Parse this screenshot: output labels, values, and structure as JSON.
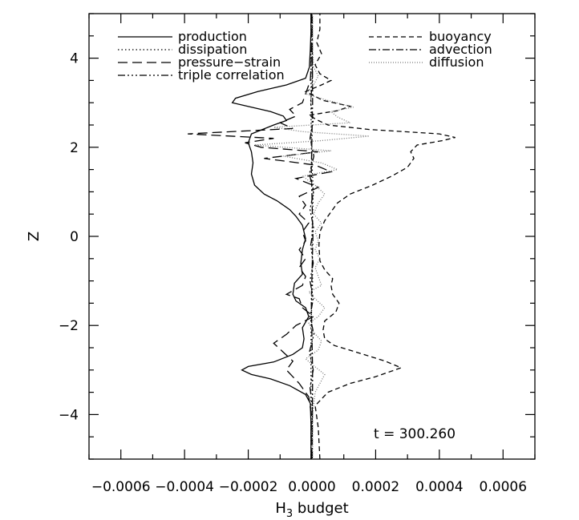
{
  "chart_data": {
    "type": "line",
    "xlabel": "H",
    "xlabel_sub": "3",
    "xlabel_suffix": " budget",
    "ylabel": "Z",
    "xlim": [
      -0.0007,
      0.0007
    ],
    "ylim": [
      -5,
      5
    ],
    "xticks": [
      {
        "value": -0.0006,
        "label": "−0.0006"
      },
      {
        "value": -0.0004,
        "label": "−0.0004"
      },
      {
        "value": -0.0002,
        "label": "−0.0002"
      },
      {
        "value": 0.0,
        "label": "0.0000"
      },
      {
        "value": 0.0002,
        "label": "0.0002"
      },
      {
        "value": 0.0004,
        "label": "0.0004"
      },
      {
        "value": 0.0006,
        "label": "0.0006"
      }
    ],
    "yticks": [
      {
        "value": -4,
        "label": "−4"
      },
      {
        "value": -2,
        "label": "−2"
      },
      {
        "value": 0,
        "label": "0"
      },
      {
        "value": 2,
        "label": "2"
      },
      {
        "value": 4,
        "label": "4"
      }
    ],
    "grid": false,
    "annotation": "t = 300.260",
    "legend_left": [
      {
        "name": "production",
        "dash": "solid"
      },
      {
        "name": "dissipation",
        "dash": "dotted"
      },
      {
        "name": "pressure−strain",
        "dash": "longdash"
      },
      {
        "name": "triple correlation",
        "dash": "dashdotdotdot"
      }
    ],
    "legend_right": [
      {
        "name": "buoyancy",
        "dash": "dashed"
      },
      {
        "name": "advection",
        "dash": "dashdot"
      },
      {
        "name": "diffusion",
        "dash": "finedotted"
      }
    ],
    "series": [
      {
        "name": "production",
        "dash": "solid",
        "color": "#000000",
        "points": [
          [
            -3e-06,
            -5
          ],
          [
            -3e-06,
            -4.2
          ],
          [
            -5e-06,
            -3.75
          ],
          [
            -2e-05,
            -3.55
          ],
          [
            -7e-05,
            -3.35
          ],
          [
            -0.00013,
            -3.2
          ],
          [
            -0.00019,
            -3.1
          ],
          [
            -0.00022,
            -3.0
          ],
          [
            -0.0002,
            -2.92
          ],
          [
            -0.00012,
            -2.82
          ],
          [
            -6e-05,
            -2.65
          ],
          [
            -3e-05,
            -2.5
          ],
          [
            -2.5e-05,
            -2.3
          ],
          [
            -3e-05,
            -2.05
          ],
          [
            -1e-05,
            -1.8
          ],
          [
            -2e-05,
            -1.6
          ],
          [
            -5e-05,
            -1.45
          ],
          [
            -6e-05,
            -1.3
          ],
          [
            -5.5e-05,
            -1.05
          ],
          [
            -3e-05,
            -0.85
          ],
          [
            -3.5e-05,
            -0.6
          ],
          [
            -3e-05,
            -0.3
          ],
          [
            -2e-05,
            -0.05
          ],
          [
            -3e-05,
            0.25
          ],
          [
            -5e-05,
            0.45
          ],
          [
            -7e-05,
            0.6
          ],
          [
            -0.00011,
            0.8
          ],
          [
            -0.00015,
            0.95
          ],
          [
            -0.00018,
            1.15
          ],
          [
            -0.00019,
            1.4
          ],
          [
            -0.000185,
            1.65
          ],
          [
            -0.00019,
            1.9
          ],
          [
            -0.0002,
            2.1
          ],
          [
            -0.00019,
            2.3
          ],
          [
            -0.00012,
            2.5
          ],
          [
            -8e-05,
            2.6
          ],
          [
            -9e-05,
            2.7
          ],
          [
            -0.00013,
            2.8
          ],
          [
            -0.00019,
            2.9
          ],
          [
            -0.00025,
            3.0
          ],
          [
            -0.00024,
            3.1
          ],
          [
            -0.00017,
            3.25
          ],
          [
            -8e-05,
            3.4
          ],
          [
            -2e-05,
            3.55
          ],
          [
            -8e-06,
            3.8
          ],
          [
            -5e-06,
            4.2
          ],
          [
            -3e-06,
            4.6
          ],
          [
            -3e-06,
            5
          ]
        ]
      },
      {
        "name": "dissipation",
        "dash": "dotted",
        "color": "#000000",
        "points": [
          [
            -3e-06,
            -5
          ],
          [
            -3e-06,
            -2.0
          ],
          [
            2e-06,
            -1.0
          ],
          [
            0.0,
            0.0
          ],
          [
            4e-06,
            1.0
          ],
          [
            -2e-06,
            2.0
          ],
          [
            -3e-06,
            3.0
          ],
          [
            -3e-06,
            5
          ]
        ]
      },
      {
        "name": "pressure−strain",
        "dash": "longdash",
        "color": "#000000",
        "points": [
          [
            -2e-06,
            -5
          ],
          [
            -2e-06,
            -4.0
          ],
          [
            -1e-05,
            -3.6
          ],
          [
            -4e-05,
            -3.3
          ],
          [
            -8e-05,
            -3.0
          ],
          [
            -6e-05,
            -2.8
          ],
          [
            -9e-05,
            -2.6
          ],
          [
            -0.00012,
            -2.4
          ],
          [
            -8e-05,
            -2.2
          ],
          [
            -5e-05,
            -2.0
          ],
          [
            5e-06,
            -1.8
          ],
          [
            -3e-05,
            -1.6
          ],
          [
            -4e-05,
            -1.4
          ],
          [
            -8e-05,
            -1.3
          ],
          [
            -3e-05,
            -1.1
          ],
          [
            -2e-05,
            -0.9
          ],
          [
            -4e-05,
            -0.7
          ],
          [
            -2e-05,
            -0.5
          ],
          [
            -4e-05,
            -0.3
          ],
          [
            -2e-05,
            -0.1
          ],
          [
            -3e-05,
            0.1
          ],
          [
            -1e-05,
            0.3
          ],
          [
            -4e-05,
            0.5
          ],
          [
            -2e-05,
            0.7
          ],
          [
            -4e-05,
            0.9
          ],
          [
            2e-05,
            1.1
          ],
          [
            -5e-05,
            1.3
          ],
          [
            6e-05,
            1.45
          ],
          [
            1e-05,
            1.6
          ],
          [
            -0.00015,
            1.75
          ],
          [
            2e-05,
            1.9
          ],
          [
            -0.00016,
            2.0
          ],
          [
            -0.00021,
            2.1
          ],
          [
            -0.00012,
            2.2
          ],
          [
            -0.00039,
            2.3
          ],
          [
            -6e-05,
            2.42
          ],
          [
            -0.0001,
            2.55
          ],
          [
            -5e-05,
            2.7
          ],
          [
            -7e-05,
            2.85
          ],
          [
            -3e-05,
            3.0
          ],
          [
            -5e-06,
            3.5
          ],
          [
            -2e-06,
            4.0
          ],
          [
            -2e-06,
            5
          ]
        ]
      },
      {
        "name": "triple correlation",
        "dash": "dashdotdotdot",
        "color": "#000000",
        "points": [
          [
            1e-06,
            -5
          ],
          [
            1e-06,
            -3.8
          ],
          [
            -6e-06,
            -3.4
          ],
          [
            4e-06,
            -3.0
          ],
          [
            -8e-06,
            -2.6
          ],
          [
            6e-06,
            -2.2
          ],
          [
            -6e-06,
            -1.8
          ],
          [
            4e-06,
            -1.4
          ],
          [
            -6e-06,
            -1.0
          ],
          [
            4e-06,
            -0.6
          ],
          [
            -4e-06,
            -0.2
          ],
          [
            5e-06,
            0.2
          ],
          [
            -6e-06,
            0.6
          ],
          [
            5e-06,
            1.0
          ],
          [
            -8e-06,
            1.4
          ],
          [
            6e-06,
            1.8
          ],
          [
            -6e-06,
            2.2
          ],
          [
            4e-06,
            2.6
          ],
          [
            -4e-06,
            3.0
          ],
          [
            1e-06,
            3.5
          ],
          [
            1e-06,
            5
          ]
        ]
      },
      {
        "name": "buoyancy",
        "dash": "dashed",
        "color": "#000000",
        "points": [
          [
            2.5e-05,
            -5
          ],
          [
            2e-05,
            -4.3
          ],
          [
            1e-05,
            -3.8
          ],
          [
            5e-05,
            -3.5
          ],
          [
            0.00012,
            -3.3
          ],
          [
            0.0002,
            -3.15
          ],
          [
            0.00028,
            -2.95
          ],
          [
            0.00023,
            -2.8
          ],
          [
            0.00014,
            -2.6
          ],
          [
            7e-05,
            -2.45
          ],
          [
            4e-05,
            -2.3
          ],
          [
            3.5e-05,
            -2.1
          ],
          [
            4e-05,
            -1.9
          ],
          [
            7.5e-05,
            -1.7
          ],
          [
            8.5e-05,
            -1.5
          ],
          [
            6.5e-05,
            -1.3
          ],
          [
            6e-05,
            -1.1
          ],
          [
            6.5e-05,
            -0.95
          ],
          [
            4e-05,
            -0.75
          ],
          [
            2.5e-05,
            -0.55
          ],
          [
            2.2e-05,
            -0.2
          ],
          [
            2.5e-05,
            0.1
          ],
          [
            4e-05,
            0.35
          ],
          [
            6e-05,
            0.55
          ],
          [
            8e-05,
            0.75
          ],
          [
            0.00012,
            0.95
          ],
          [
            0.00019,
            1.15
          ],
          [
            0.00025,
            1.35
          ],
          [
            0.0003,
            1.55
          ],
          [
            0.00032,
            1.75
          ],
          [
            0.00031,
            1.9
          ],
          [
            0.00033,
            2.05
          ],
          [
            0.00041,
            2.15
          ],
          [
            0.00045,
            2.22
          ],
          [
            0.0004,
            2.3
          ],
          [
            0.00018,
            2.4
          ],
          [
            5e-05,
            2.5
          ],
          [
            2e-05,
            2.6
          ],
          [
            -1e-05,
            2.72
          ],
          [
            8e-05,
            2.82
          ],
          [
            0.00012,
            2.92
          ],
          [
            3.5e-05,
            3.05
          ],
          [
            -2e-05,
            3.25
          ],
          [
            3e-05,
            3.4
          ],
          [
            6e-05,
            3.5
          ],
          [
            2.5e-05,
            3.65
          ],
          [
            1e-05,
            3.85
          ],
          [
            3e-05,
            4.1
          ],
          [
            1.5e-05,
            4.35
          ],
          [
            2.5e-05,
            4.65
          ],
          [
            2.5e-05,
            5
          ]
        ]
      },
      {
        "name": "advection",
        "dash": "dashdot",
        "color": "#000000",
        "points": [
          [
            1e-06,
            -5
          ],
          [
            2e-06,
            -3.0
          ],
          [
            -2e-06,
            -1.5
          ],
          [
            3e-06,
            0.0
          ],
          [
            -2e-06,
            1.5
          ],
          [
            2e-06,
            3.0
          ],
          [
            1e-06,
            5
          ]
        ]
      },
      {
        "name": "diffusion",
        "dash": "finedotted",
        "color": "#777777",
        "points": [
          [
            2e-06,
            -5
          ],
          [
            2e-06,
            -4.0
          ],
          [
            1e-05,
            -3.5
          ],
          [
            4e-05,
            -3.1
          ],
          [
            5e-06,
            -2.9
          ],
          [
            -2e-05,
            -2.75
          ],
          [
            2e-05,
            -2.55
          ],
          [
            3e-05,
            -2.35
          ],
          [
            5e-06,
            -2.15
          ],
          [
            -1e-05,
            -1.95
          ],
          [
            2e-05,
            -1.8
          ],
          [
            4e-05,
            -1.6
          ],
          [
            1e-05,
            -1.4
          ],
          [
            -1e-05,
            -1.25
          ],
          [
            3e-05,
            -1.1
          ],
          [
            2e-05,
            -0.9
          ],
          [
            1e-05,
            -0.7
          ],
          [
            2.5e-05,
            -0.5
          ],
          [
            1e-05,
            -0.3
          ],
          [
            2e-05,
            -0.1
          ],
          [
            1e-05,
            0.1
          ],
          [
            3e-05,
            0.3
          ],
          [
            5e-06,
            0.5
          ],
          [
            2e-05,
            0.75
          ],
          [
            4e-05,
            0.95
          ],
          [
            1e-05,
            1.15
          ],
          [
            -3e-05,
            1.35
          ],
          [
            8e-05,
            1.5
          ],
          [
            3e-05,
            1.65
          ],
          [
            -9e-05,
            1.8
          ],
          [
            6e-05,
            1.92
          ],
          [
            -0.00018,
            2.05
          ],
          [
            3e-05,
            2.15
          ],
          [
            0.00018,
            2.25
          ],
          [
            -3e-05,
            2.35
          ],
          [
            -0.00012,
            2.45
          ],
          [
            0.00012,
            2.55
          ],
          [
            8e-05,
            2.68
          ],
          [
            6e-05,
            2.8
          ],
          [
            0.00013,
            2.9
          ],
          [
            5e-05,
            3.05
          ],
          [
            -2e-05,
            3.2
          ],
          [
            5e-06,
            3.4
          ],
          [
            2e-05,
            3.6
          ],
          [
            5e-06,
            3.8
          ],
          [
            2e-06,
            4.2
          ],
          [
            2e-06,
            5
          ]
        ]
      }
    ]
  }
}
